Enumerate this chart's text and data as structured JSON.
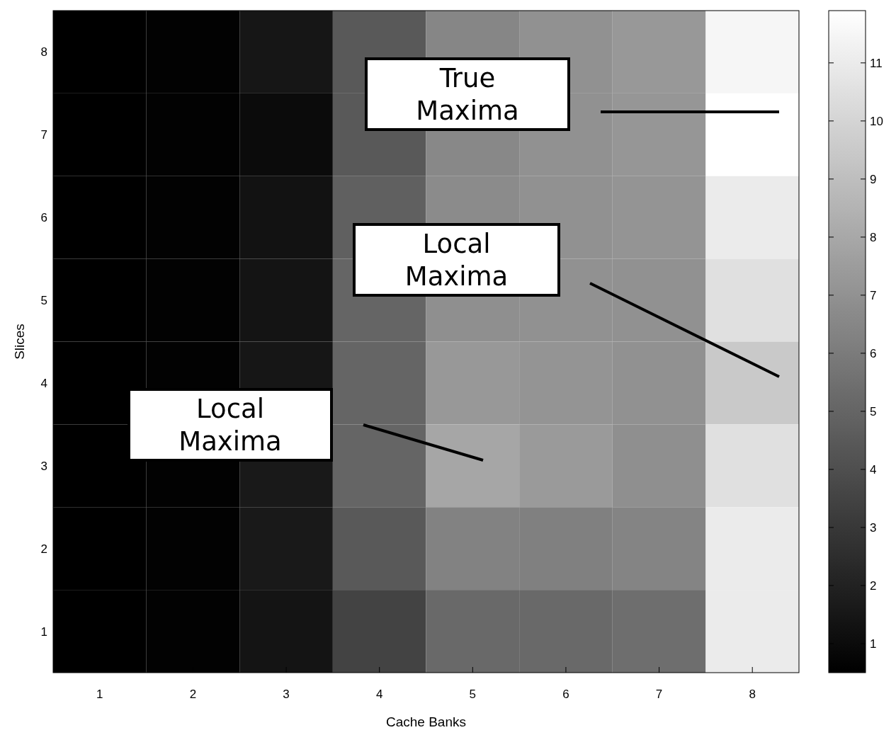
{
  "chart_data": {
    "type": "heatmap",
    "xlabel": "Cache Banks",
    "ylabel": "Slices",
    "categories": [
      "1",
      "2",
      "3",
      "4",
      "5",
      "6",
      "7",
      "8"
    ],
    "y_categories": [
      "8",
      "7",
      "6",
      "5",
      "4",
      "3",
      "2",
      "1"
    ],
    "cells": [
      [
        0.5,
        0.6,
        1.5,
        4.5,
        6.5,
        7.0,
        7.3,
        11.5
      ],
      [
        0.5,
        0.6,
        1.0,
        4.5,
        6.6,
        7.0,
        7.2,
        11.9
      ],
      [
        0.5,
        0.6,
        1.3,
        4.8,
        6.7,
        7.0,
        7.1,
        11.0
      ],
      [
        0.5,
        0.6,
        1.4,
        5.0,
        6.9,
        7.0,
        7.0,
        10.5
      ],
      [
        0.5,
        0.6,
        1.5,
        5.0,
        7.3,
        7.1,
        7.0,
        9.5
      ],
      [
        0.5,
        0.6,
        1.6,
        5.0,
        7.9,
        7.4,
        6.9,
        10.5
      ],
      [
        0.5,
        0.6,
        1.6,
        4.5,
        6.3,
        6.2,
        6.4,
        11.0
      ],
      [
        0.5,
        0.6,
        1.4,
        3.5,
        5.2,
        5.2,
        5.4,
        11.0
      ]
    ],
    "clim": [
      0.5,
      11.9
    ],
    "cticks": [
      1,
      2,
      3,
      4,
      5,
      6,
      7,
      8,
      9,
      10,
      11
    ],
    "annotations": [
      "True Maxima",
      "Local Maxima",
      "Local Maxima"
    ]
  }
}
